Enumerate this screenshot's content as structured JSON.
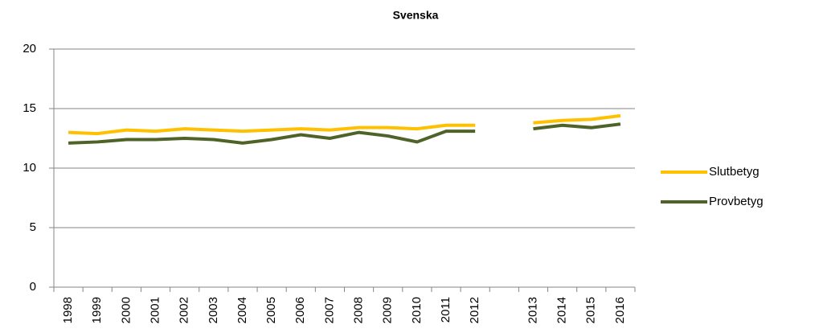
{
  "chart_data": {
    "type": "line",
    "title": "Svenska",
    "categories": [
      "1998",
      "1999",
      "2000",
      "2001",
      "2002",
      "2003",
      "2004",
      "2005",
      "2006",
      "2007",
      "2008",
      "2009",
      "2010",
      "2011",
      "2012",
      null,
      "2013",
      "2014",
      "2015",
      "2016"
    ],
    "series": [
      {
        "name": "Slutbetyg",
        "color": "#ffc000",
        "values": [
          13.0,
          12.9,
          13.2,
          13.1,
          13.3,
          13.2,
          13.1,
          13.2,
          13.3,
          13.2,
          13.4,
          13.4,
          13.3,
          13.6,
          13.6,
          null,
          13.8,
          14.0,
          14.1,
          14.4
        ]
      },
      {
        "name": "Provbetyg",
        "color": "#4f6228",
        "values": [
          12.1,
          12.2,
          12.4,
          12.4,
          12.5,
          12.4,
          12.1,
          12.4,
          12.8,
          12.5,
          13.0,
          12.7,
          12.2,
          13.1,
          13.1,
          null,
          13.3,
          13.6,
          13.4,
          13.7
        ]
      }
    ],
    "ylim": [
      0,
      20
    ],
    "yticks": [
      0,
      5,
      10,
      15,
      20
    ],
    "grid": true,
    "legend": "right"
  }
}
